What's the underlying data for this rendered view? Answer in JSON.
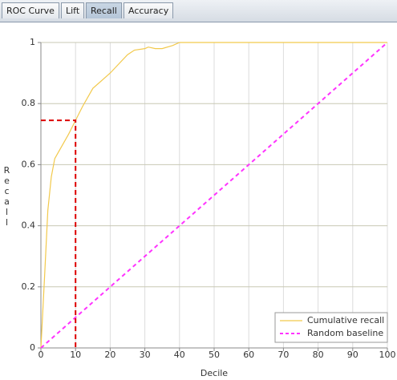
{
  "tabs": [
    "ROC Curve",
    "Lift",
    "Recall",
    "Accuracy"
  ],
  "selected_tab": 2,
  "chart_data": {
    "type": "line",
    "xlabel": "Decile",
    "ylabel": "Recall",
    "xlim": [
      0,
      100
    ],
    "xticks": [
      0,
      10,
      20,
      30,
      40,
      50,
      60,
      70,
      80,
      90,
      100
    ],
    "ylim": [
      0,
      1
    ],
    "yticks": [
      0,
      0.2,
      0.4,
      0.6,
      0.8,
      1
    ],
    "series": [
      {
        "name": "Cumulative recall",
        "color": "#f2c94c",
        "dash": false,
        "x": [
          0,
          1,
          2,
          3,
          4,
          5,
          8,
          10,
          12,
          15,
          20,
          25,
          27,
          30,
          31,
          33,
          35,
          38,
          40,
          100
        ],
        "values": [
          0,
          0.22,
          0.45,
          0.56,
          0.62,
          0.64,
          0.7,
          0.745,
          0.79,
          0.85,
          0.9,
          0.96,
          0.975,
          0.98,
          0.985,
          0.98,
          0.98,
          0.99,
          1,
          1
        ]
      },
      {
        "name": "Random baseline",
        "color": "#ff33ff",
        "dash": true,
        "x": [
          0,
          100
        ],
        "values": [
          0,
          1
        ]
      }
    ],
    "marker": {
      "x": 10,
      "y": 0.745,
      "color": "#dd0000"
    },
    "grid": true,
    "legend": "lower right"
  }
}
